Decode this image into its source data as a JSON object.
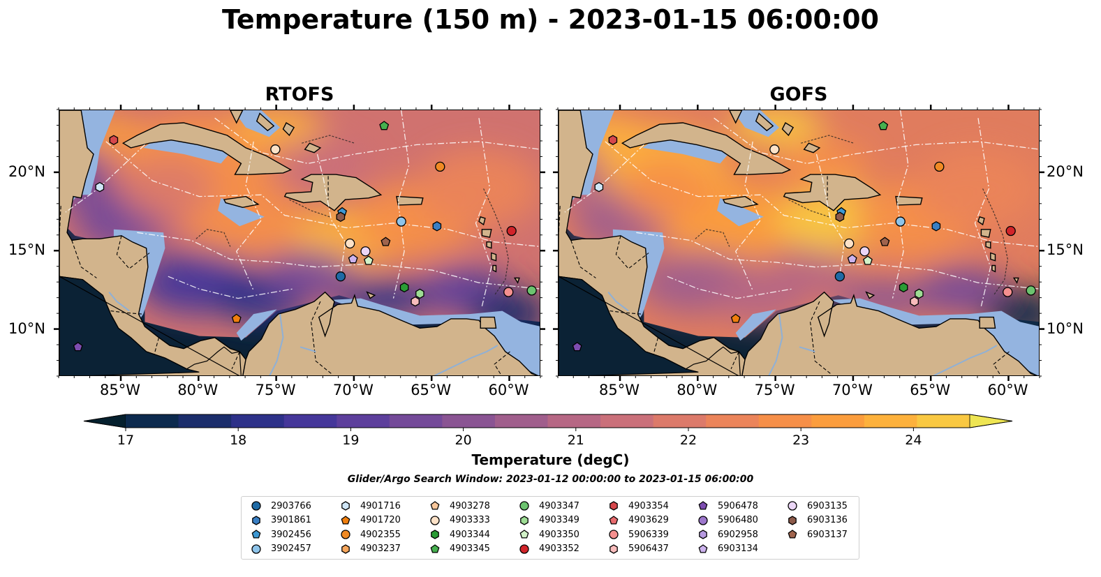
{
  "title": "Temperature (150 m) - 2023-01-15 06:00:00",
  "panels": [
    {
      "title": "RTOFS",
      "model": "rtofs"
    },
    {
      "title": "GOFS",
      "model": "gofs"
    }
  ],
  "axes": {
    "lon_labels": [
      "85°W",
      "80°W",
      "75°W",
      "70°W",
      "65°W",
      "60°W"
    ],
    "lon_values": [
      -85,
      -80,
      -75,
      -70,
      -65,
      -60
    ],
    "lat_labels": [
      "20°N",
      "15°N",
      "10°N"
    ],
    "lat_values": [
      20,
      15,
      10
    ],
    "lon_range": [
      -89,
      -58
    ],
    "lat_range": [
      7,
      24
    ]
  },
  "colorbar": {
    "label": "Temperature (degC)",
    "ticks": [
      "17",
      "18",
      "19",
      "20",
      "21",
      "22",
      "23",
      "24"
    ],
    "tick_values": [
      17,
      18,
      19,
      20,
      21,
      22,
      23,
      24
    ],
    "range": [
      16.5,
      24.5
    ],
    "colormap": "thermal",
    "extend": "both",
    "colors": [
      "#05202e",
      "#0c2a4e",
      "#1b2d6b",
      "#2d3189",
      "#45379a",
      "#5d3f9c",
      "#744a99",
      "#8a5493",
      "#a05e8c",
      "#b66784",
      "#ca707a",
      "#dc7a6a",
      "#eb845a",
      "#f68f48",
      "#fb9d3d",
      "#fdb13c",
      "#f9c842",
      "#eee553"
    ]
  },
  "search_window": "Glider/Argo Search Window: 2023-01-12 00:00:00 to 2023-01-15 06:00:00",
  "colors": {
    "land": "#d2b48c",
    "shelf": "#94b4e0",
    "deep": "#0b2235"
  },
  "platforms": [
    {
      "id": "2903766",
      "marker": "circle",
      "color": "#1f6aa5",
      "lon": null,
      "lat": null
    },
    {
      "id": "3901861",
      "marker": "hexagon",
      "color": "#3a7fc4",
      "lon": null,
      "lat": null
    },
    {
      "id": "3902456",
      "marker": "pentagon",
      "color": "#3d98d3",
      "lon": -70.8,
      "lat": 17.5
    },
    {
      "id": "3902457",
      "marker": "circle",
      "color": "#8ec4ea",
      "lon": -67.0,
      "lat": 16.9
    },
    {
      "id": "4901716",
      "marker": "hexagon",
      "color": "#cfe6f7",
      "lon": -86.4,
      "lat": 19.1
    },
    {
      "id": "4901720",
      "marker": "pentagon",
      "color": "#f07f0e",
      "lon": -77.6,
      "lat": 10.7
    },
    {
      "id": "4902355",
      "marker": "circle",
      "color": "#f08a24",
      "lon": null,
      "lat": null
    },
    {
      "id": "4903237",
      "marker": "hexagon",
      "color": "#f6a65c",
      "lon": null,
      "lat": null
    },
    {
      "id": "4903278",
      "marker": "pentagon",
      "color": "#f9c79b",
      "lon": null,
      "lat": null
    },
    {
      "id": "4903333",
      "marker": "circle",
      "color": "#fde2c8",
      "lon": -75.1,
      "lat": 21.5
    },
    {
      "id": "4903344",
      "marker": "hexagon",
      "color": "#2a9c35",
      "lon": -66.8,
      "lat": 12.7
    },
    {
      "id": "4903345",
      "marker": "pentagon",
      "color": "#46b04f",
      "lon": -68.1,
      "lat": 23.0
    },
    {
      "id": "4903347",
      "marker": "circle",
      "color": "#6cc36f",
      "lon": -58.6,
      "lat": 12.5
    },
    {
      "id": "4903349",
      "marker": "hexagon",
      "color": "#9edd95",
      "lon": -65.8,
      "lat": 12.3
    },
    {
      "id": "4903350",
      "marker": "pentagon",
      "color": "#d2f2c8",
      "lon": -69.1,
      "lat": 14.4
    },
    {
      "id": "4903352",
      "marker": "circle",
      "color": "#d1242a",
      "lon": -59.9,
      "lat": 16.3
    },
    {
      "id": "4903354",
      "marker": "hexagon",
      "color": "#d6474c",
      "lon": -85.5,
      "lat": 22.1
    },
    {
      "id": "4903629",
      "marker": "pentagon",
      "color": "#e86b6e",
      "lon": null,
      "lat": null
    },
    {
      "id": "5906339",
      "marker": "circle",
      "color": "#f5908f",
      "lon": -60.1,
      "lat": 12.4
    },
    {
      "id": "5906437",
      "marker": "hexagon",
      "color": "#f8bcbc",
      "lon": -66.1,
      "lat": 11.8
    },
    {
      "id": "5906478",
      "marker": "pentagon",
      "color": "#7d4db0",
      "lon": -87.8,
      "lat": 8.9
    },
    {
      "id": "5906480",
      "marker": "circle",
      "color": "#9d77cc",
      "lon": null,
      "lat": null
    },
    {
      "id": "6902958",
      "marker": "hexagon",
      "color": "#b79ae0",
      "lon": null,
      "lat": null
    },
    {
      "id": "6903134",
      "marker": "pentagon",
      "color": "#cdb3ee",
      "lon": -70.1,
      "lat": 14.5
    },
    {
      "id": "6903135",
      "marker": "circle",
      "color": "#ebd6f6",
      "lon": -69.3,
      "lat": 15.0
    },
    {
      "id": "6903136",
      "marker": "hexagon",
      "color": "#8c5a4a",
      "lon": -70.9,
      "lat": 17.2
    },
    {
      "id": "6903137",
      "marker": "pentagon",
      "color": "#a0644d",
      "lon": -68.0,
      "lat": 15.6
    }
  ],
  "extra_markers": [
    {
      "marker": "circle",
      "color": "#f08a24",
      "lon": -64.5,
      "lat": 20.4
    },
    {
      "marker": "hexagon",
      "color": "#3a7fc4",
      "lon": -64.7,
      "lat": 16.6
    },
    {
      "marker": "circle",
      "color": "#1f6aa5",
      "lon": -70.9,
      "lat": 13.4
    },
    {
      "marker": "circle",
      "color": "#fde2c8",
      "lon": -70.3,
      "lat": 15.5
    }
  ]
}
